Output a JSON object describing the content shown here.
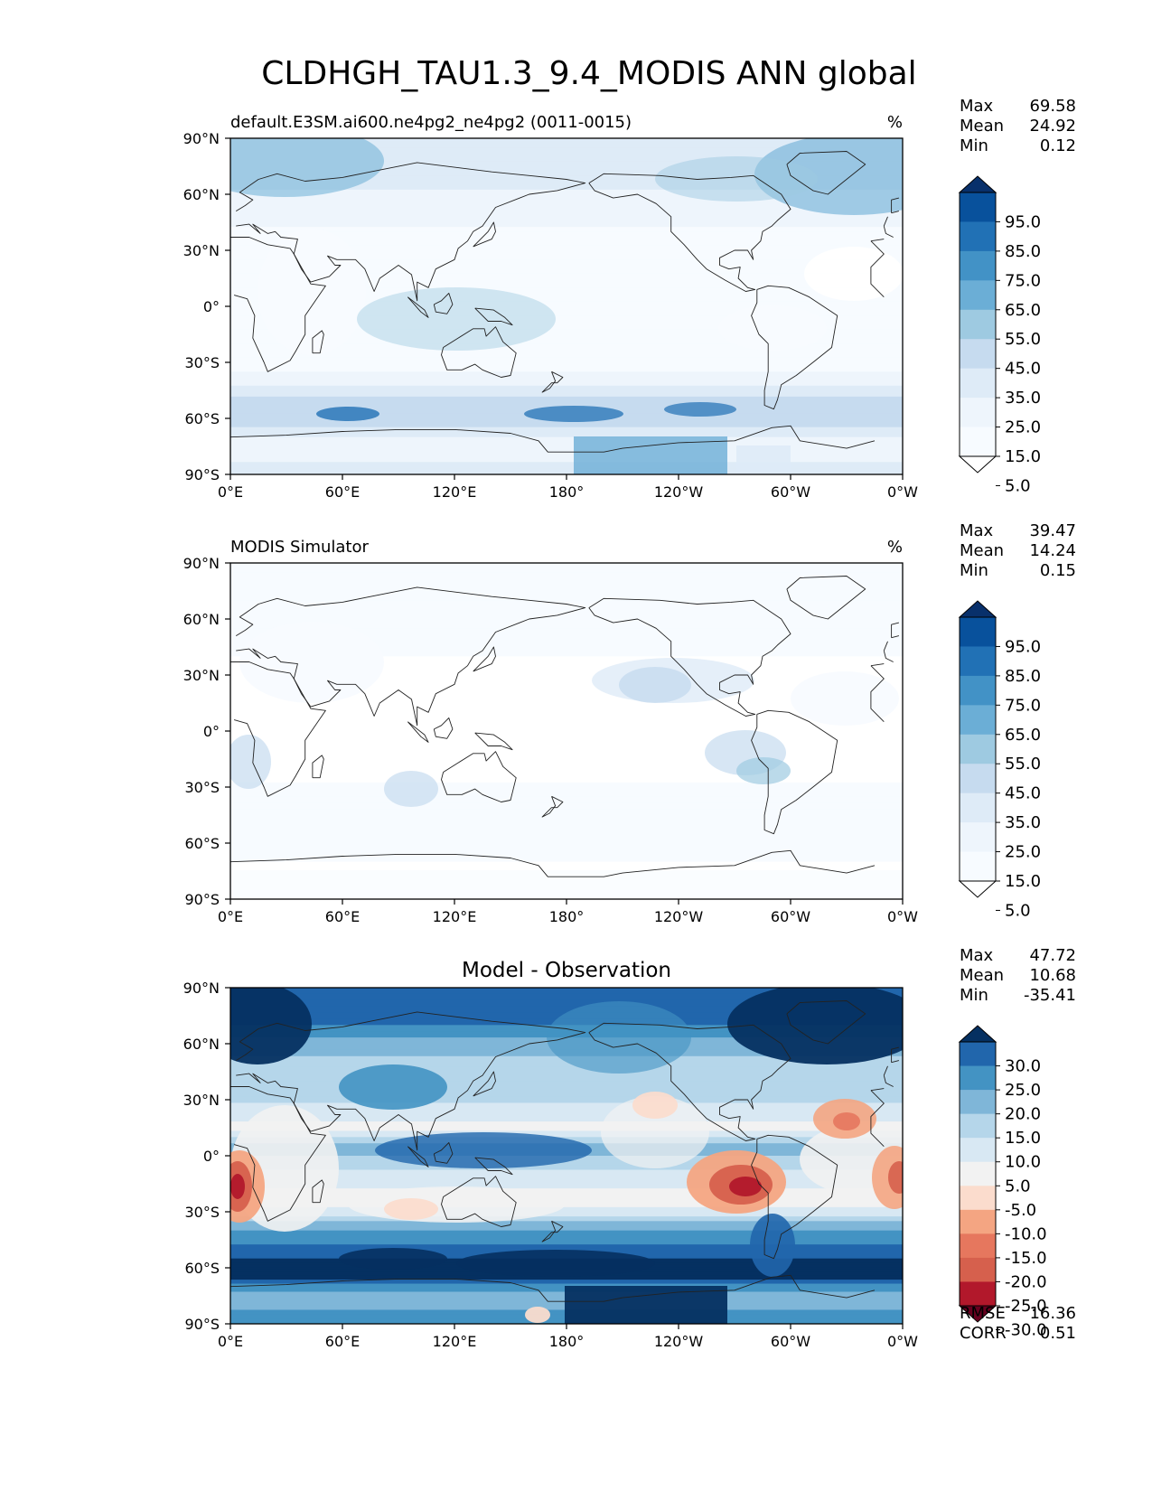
{
  "title": "CLDHGH_TAU1.3_9.4_MODIS ANN global",
  "lon_labels": [
    "0°E",
    "60°E",
    "120°E",
    "180°",
    "120°W",
    "60°W",
    "0°W"
  ],
  "lat_labels": [
    "90°N",
    "60°N",
    "30°N",
    "0°",
    "30°S",
    "60°S",
    "90°S"
  ],
  "panels": [
    {
      "id": "test",
      "left_title": "default.E3SM.ai600.ne4pg2_ne4pg2 (0011-0015)",
      "center_title": "",
      "units": "%",
      "stats": [
        {
          "label": "Max",
          "value": "69.58"
        },
        {
          "label": "Mean",
          "value": "24.92"
        },
        {
          "label": "Min",
          "value": "0.12"
        }
      ],
      "colorbar_ticks": [
        "95.0",
        "85.0",
        "75.0",
        "65.0",
        "55.0",
        "45.0",
        "35.0",
        "25.0",
        "15.0",
        "5.0"
      ],
      "colorbar_colors": [
        "#08306b",
        "#08519c",
        "#2171b5",
        "#4292c6",
        "#6baed6",
        "#9ecae1",
        "#c6dbef",
        "#deebf7",
        "#eef5fc",
        "#f7fbff",
        "#ffffff"
      ],
      "mean_value": 24.92,
      "zonal_profile": [
        {
          "lat": 90,
          "value": 45
        },
        {
          "lat": 75,
          "value": 42
        },
        {
          "lat": 60,
          "value": 33
        },
        {
          "lat": 45,
          "value": 26
        },
        {
          "lat": 30,
          "value": 18
        },
        {
          "lat": 15,
          "value": 16
        },
        {
          "lat": 0,
          "value": 20
        },
        {
          "lat": -15,
          "value": 16
        },
        {
          "lat": -30,
          "value": 18
        },
        {
          "lat": -45,
          "value": 40
        },
        {
          "lat": -55,
          "value": 52
        },
        {
          "lat": -62,
          "value": 50
        },
        {
          "lat": -70,
          "value": 35
        },
        {
          "lat": -80,
          "value": 30
        },
        {
          "lat": -90,
          "value": 42
        }
      ]
    },
    {
      "id": "reference",
      "left_title": "MODIS Simulator",
      "center_title": "",
      "units": "%",
      "stats": [
        {
          "label": "Max",
          "value": "39.47"
        },
        {
          "label": "Mean",
          "value": "14.24"
        },
        {
          "label": "Min",
          "value": "0.15"
        }
      ],
      "colorbar_ticks": [
        "95.0",
        "85.0",
        "75.0",
        "65.0",
        "55.0",
        "45.0",
        "35.0",
        "25.0",
        "15.0",
        "5.0"
      ],
      "colorbar_colors": [
        "#08306b",
        "#08519c",
        "#2171b5",
        "#4292c6",
        "#6baed6",
        "#9ecae1",
        "#c6dbef",
        "#deebf7",
        "#eef5fc",
        "#f7fbff",
        "#ffffff"
      ],
      "mean_value": 14.24,
      "zonal_profile": [
        {
          "lat": 90,
          "value": 18
        },
        {
          "lat": 60,
          "value": 20
        },
        {
          "lat": 30,
          "value": 12
        },
        {
          "lat": 10,
          "value": 14
        },
        {
          "lat": 0,
          "value": 13
        },
        {
          "lat": -20,
          "value": 12
        },
        {
          "lat": -35,
          "value": 18
        },
        {
          "lat": -55,
          "value": 24
        },
        {
          "lat": -68,
          "value": 16
        },
        {
          "lat": -80,
          "value": 8
        },
        {
          "lat": -90,
          "value": 10
        }
      ]
    },
    {
      "id": "diff",
      "left_title": "",
      "center_title": "Model - Observation",
      "units": "",
      "stats": [
        {
          "label": "Max",
          "value": "47.72"
        },
        {
          "label": "Mean",
          "value": "10.68"
        },
        {
          "label": "Min",
          "value": "-35.41"
        }
      ],
      "colorbar_ticks": [
        "30.0",
        "25.0",
        "20.0",
        "15.0",
        "10.0",
        "5.0",
        "-5.0",
        "-10.0",
        "-15.0",
        "-20.0",
        "-25.0",
        "-30.0"
      ],
      "colorbar_colors": [
        "#053061",
        "#2166ac",
        "#4393c3",
        "#7fb6d8",
        "#b5d6ea",
        "#d8e8f3",
        "#f2f2f2",
        "#fbdccd",
        "#f4a582",
        "#e6775e",
        "#d6604d",
        "#b2182b",
        "#67001f"
      ],
      "mean_value": 10.68,
      "footer_stats": [
        {
          "label": "RMSE",
          "value": "16.36"
        },
        {
          "label": "CORR",
          "value": "0.51"
        }
      ],
      "zonal_profile": [
        {
          "lat": 90,
          "value": 28
        },
        {
          "lat": 70,
          "value": 25
        },
        {
          "lat": 50,
          "value": 12
        },
        {
          "lat": 35,
          "value": 14
        },
        {
          "lat": 15,
          "value": 3
        },
        {
          "lat": 5,
          "value": 18
        },
        {
          "lat": -10,
          "value": 8
        },
        {
          "lat": -25,
          "value": 2
        },
        {
          "lat": -40,
          "value": 20
        },
        {
          "lat": -55,
          "value": 30
        },
        {
          "lat": -62,
          "value": 34
        },
        {
          "lat": -75,
          "value": 18
        },
        {
          "lat": -90,
          "value": 22
        }
      ]
    }
  ],
  "map_colors": {
    "coastline": "#222222",
    "land_fill": "none"
  }
}
